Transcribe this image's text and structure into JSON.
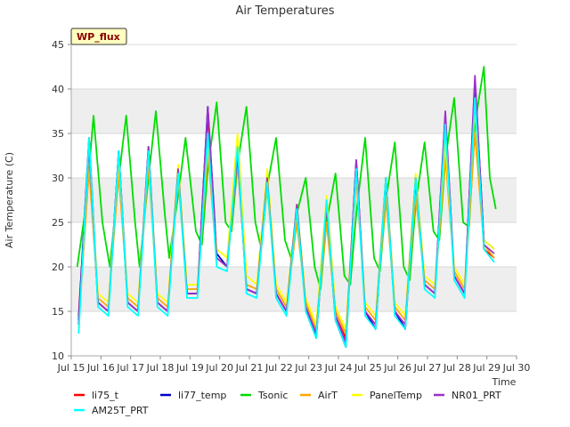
{
  "chart_data": {
    "type": "line",
    "title": "Air Temperatures",
    "xlabel": "Time",
    "ylabel": "Air Temperature (C)",
    "badge": "WP_flux",
    "ylim": [
      10,
      45
    ],
    "xlim": [
      15,
      30
    ],
    "y_ticks": [
      10,
      15,
      20,
      25,
      30,
      35,
      40,
      45
    ],
    "x_ticks": [
      {
        "value": 15,
        "label": "Jul 15"
      },
      {
        "value": 16,
        "label": "Jul 16"
      },
      {
        "value": 17,
        "label": "Jul 17"
      },
      {
        "value": 18,
        "label": "Jul 18"
      },
      {
        "value": 19,
        "label": "Jul 19"
      },
      {
        "value": 20,
        "label": "Jul 20"
      },
      {
        "value": 21,
        "label": "Jul 21"
      },
      {
        "value": 22,
        "label": "Jul 22"
      },
      {
        "value": 23,
        "label": "Jul 23"
      },
      {
        "value": 24,
        "label": "Jul 24"
      },
      {
        "value": 25,
        "label": "Jul 25"
      },
      {
        "value": 26,
        "label": "Jul 26"
      },
      {
        "value": 27,
        "label": "Jul 27"
      },
      {
        "value": 28,
        "label": "Jul 28"
      },
      {
        "value": 29,
        "label": "Jul 29"
      },
      {
        "value": 30,
        "label": "Jul 30"
      }
    ],
    "grid": true,
    "legend_position": "bottom",
    "series": [
      {
        "name": "li75_t",
        "color": "#ff0000",
        "x": [
          15.25,
          15.6,
          15.9,
          16.25,
          16.6,
          16.9,
          17.25,
          17.6,
          17.9,
          18.25,
          18.6,
          18.9,
          19.25,
          19.6,
          19.9,
          20.25,
          20.6,
          20.9,
          21.25,
          21.6,
          21.9,
          22.25,
          22.6,
          22.9,
          23.25,
          23.6,
          23.9,
          24.25,
          24.6,
          24.9,
          25.25,
          25.6,
          25.9,
          26.25,
          26.6,
          26.9,
          27.25,
          27.6,
          27.9,
          28.25,
          28.6,
          28.9,
          29.25
        ],
        "y": [
          14.5,
          33.5,
          16.0,
          15.0,
          32.5,
          16.0,
          15.0,
          33.0,
          16.0,
          15.0,
          31.0,
          17.0,
          17.0,
          37.0,
          21.0,
          20.0,
          33.5,
          17.5,
          17.0,
          30.0,
          17.0,
          15.0,
          27.0,
          15.5,
          12.5,
          26.5,
          14.5,
          12.0,
          31.5,
          15.0,
          13.5,
          29.5,
          15.0,
          13.5,
          29.5,
          18.0,
          17.0,
          36.0,
          19.0,
          17.0,
          40.5,
          22.0,
          21.0
        ]
      },
      {
        "name": "li77_temp",
        "color": "#0000cc",
        "x": [
          15.25,
          15.6,
          15.9,
          16.25,
          16.6,
          16.9,
          17.25,
          17.6,
          17.9,
          18.25,
          18.6,
          18.9,
          19.25,
          19.6,
          19.9,
          20.25,
          20.6,
          20.9,
          21.25,
          21.6,
          21.9,
          22.25,
          22.6,
          22.9,
          23.25,
          23.6,
          23.9,
          24.25,
          24.6,
          24.9,
          25.25,
          25.6,
          25.9,
          26.25,
          26.6,
          26.9,
          27.25,
          27.6,
          27.9,
          28.25,
          28.6,
          28.9,
          29.25
        ],
        "y": [
          14.0,
          34.5,
          16.0,
          15.0,
          33.0,
          16.0,
          15.0,
          33.5,
          16.0,
          15.0,
          31.0,
          17.0,
          17.0,
          38.0,
          21.5,
          20.0,
          33.0,
          17.5,
          17.0,
          30.0,
          17.0,
          15.0,
          26.5,
          15.5,
          12.0,
          27.0,
          14.0,
          11.0,
          32.0,
          15.0,
          13.0,
          30.0,
          15.0,
          13.0,
          30.0,
          18.0,
          17.0,
          37.0,
          19.0,
          17.0,
          41.0,
          23.0,
          22.0
        ]
      },
      {
        "name": "Tsonic",
        "color": "#00dd00",
        "x": [
          15.2,
          15.5,
          15.75,
          16.05,
          16.3,
          16.6,
          16.85,
          17.15,
          17.3,
          17.6,
          17.85,
          18.15,
          18.3,
          18.6,
          18.85,
          19.2,
          19.4,
          19.6,
          19.9,
          20.2,
          20.4,
          20.6,
          20.9,
          21.2,
          21.4,
          21.6,
          21.9,
          22.2,
          22.4,
          22.6,
          22.9,
          23.2,
          23.4,
          23.6,
          23.9,
          24.2,
          24.4,
          24.6,
          24.9,
          25.2,
          25.4,
          25.6,
          25.9,
          26.2,
          26.4,
          26.6,
          26.9,
          27.2,
          27.4,
          27.6,
          27.9,
          28.2,
          28.4,
          28.6,
          28.9,
          29.1,
          29.3
        ],
        "y": [
          20.0,
          27.0,
          37.0,
          25.0,
          20.0,
          30.0,
          37.0,
          25.0,
          20.0,
          30.0,
          37.5,
          26.0,
          21.0,
          28.0,
          34.5,
          24.0,
          22.5,
          31.0,
          38.5,
          25.0,
          24.0,
          31.5,
          38.0,
          25.0,
          22.0,
          29.0,
          34.5,
          23.0,
          21.0,
          26.0,
          30.0,
          20.0,
          17.5,
          25.0,
          30.5,
          19.0,
          18.0,
          26.0,
          34.5,
          21.0,
          19.5,
          27.5,
          34.0,
          20.0,
          18.5,
          27.0,
          34.0,
          24.0,
          23.0,
          32.0,
          39.0,
          25.0,
          24.5,
          36.0,
          42.5,
          30.0,
          26.5
        ]
      },
      {
        "name": "AirT",
        "color": "#ffa500",
        "x": [
          15.25,
          15.6,
          15.9,
          16.25,
          16.6,
          16.9,
          17.25,
          17.6,
          17.9,
          18.25,
          18.6,
          18.9,
          19.25,
          19.6,
          19.9,
          20.25,
          20.6,
          20.9,
          21.25,
          21.6,
          21.9,
          22.25,
          22.6,
          22.9,
          23.25,
          23.6,
          23.9,
          24.25,
          24.6,
          24.9,
          25.25,
          25.6,
          25.9,
          26.25,
          26.6,
          26.9,
          27.25,
          27.6,
          27.9,
          28.25,
          28.6,
          28.9,
          29.25
        ],
        "y": [
          13.5,
          31.0,
          16.5,
          15.5,
          30.5,
          16.5,
          15.5,
          31.5,
          16.5,
          15.5,
          30.0,
          17.5,
          17.5,
          33.0,
          21.0,
          20.0,
          32.0,
          18.0,
          17.5,
          29.0,
          17.5,
          15.5,
          25.0,
          16.0,
          13.0,
          25.0,
          15.0,
          12.5,
          30.0,
          15.5,
          14.0,
          28.0,
          15.5,
          14.0,
          28.0,
          18.5,
          17.5,
          32.5,
          19.5,
          17.5,
          35.0,
          22.5,
          21.0
        ]
      },
      {
        "name": "PanelTemp",
        "color": "#ffff00",
        "x": [
          15.25,
          15.6,
          15.9,
          16.25,
          16.6,
          16.9,
          17.25,
          17.6,
          17.9,
          18.25,
          18.6,
          18.9,
          19.25,
          19.6,
          19.9,
          20.25,
          20.6,
          20.9,
          21.25,
          21.6,
          21.9,
          22.25,
          22.6,
          22.9,
          23.25,
          23.6,
          23.9,
          24.25,
          24.6,
          24.9,
          25.25,
          25.6,
          25.9,
          26.25,
          26.6,
          26.9,
          27.25,
          27.6,
          27.9,
          28.25,
          28.6,
          28.9,
          29.25
        ],
        "y": [
          13.0,
          33.0,
          17.0,
          16.0,
          32.0,
          17.0,
          16.0,
          33.0,
          17.0,
          16.0,
          31.5,
          18.0,
          18.0,
          34.0,
          22.0,
          21.0,
          35.0,
          19.0,
          18.0,
          31.0,
          18.0,
          16.0,
          27.0,
          16.5,
          13.5,
          28.0,
          15.5,
          13.0,
          31.0,
          16.0,
          14.5,
          30.0,
          16.0,
          14.5,
          30.5,
          19.0,
          18.0,
          34.0,
          20.0,
          18.0,
          38.0,
          23.0,
          22.0
        ]
      },
      {
        "name": "NR01_PRT",
        "color": "#9932cc",
        "x": [
          15.25,
          15.6,
          15.9,
          16.25,
          16.6,
          16.9,
          17.25,
          17.6,
          17.9,
          18.25,
          18.6,
          18.9,
          19.25,
          19.6,
          19.9,
          20.25,
          20.6,
          20.9,
          21.25,
          21.6,
          21.9,
          22.25,
          22.6,
          22.9,
          23.25,
          23.6,
          23.9,
          24.25,
          24.6,
          24.9,
          25.25,
          25.6,
          25.9,
          26.25,
          26.6,
          26.9,
          27.25,
          27.6,
          27.9,
          28.25,
          28.6,
          28.9,
          29.25
        ],
        "y": [
          13.5,
          33.5,
          16.0,
          15.0,
          33.0,
          16.0,
          15.0,
          33.5,
          16.0,
          15.0,
          31.0,
          17.0,
          17.0,
          38.0,
          21.0,
          20.0,
          32.5,
          17.5,
          17.0,
          30.0,
          17.0,
          15.0,
          27.0,
          15.5,
          12.5,
          27.0,
          14.5,
          11.5,
          32.0,
          15.0,
          13.5,
          30.0,
          15.0,
          13.5,
          30.0,
          18.0,
          17.0,
          37.5,
          19.0,
          17.0,
          41.5,
          22.5,
          21.5
        ]
      },
      {
        "name": "AM25T_PRT",
        "color": "#00ffff",
        "x": [
          15.25,
          15.6,
          15.9,
          16.25,
          16.6,
          16.9,
          17.25,
          17.6,
          17.9,
          18.25,
          18.6,
          18.9,
          19.25,
          19.6,
          19.9,
          20.25,
          20.6,
          20.9,
          21.25,
          21.6,
          21.9,
          22.25,
          22.6,
          22.9,
          23.25,
          23.6,
          23.9,
          24.25,
          24.6,
          24.9,
          25.25,
          25.6,
          25.9,
          26.25,
          26.6,
          26.9,
          27.25,
          27.6,
          27.9,
          28.25,
          28.6,
          28.9,
          29.25
        ],
        "y": [
          12.5,
          34.5,
          15.5,
          14.5,
          33.0,
          15.5,
          14.5,
          33.0,
          15.5,
          14.5,
          30.5,
          16.5,
          16.5,
          35.0,
          20.0,
          19.5,
          33.5,
          17.0,
          16.5,
          29.5,
          16.5,
          14.5,
          26.5,
          15.0,
          12.0,
          27.5,
          14.0,
          11.0,
          31.0,
          14.5,
          13.0,
          30.0,
          14.5,
          13.0,
          30.0,
          17.5,
          16.5,
          36.0,
          18.5,
          16.5,
          39.0,
          22.0,
          20.5
        ]
      }
    ]
  }
}
